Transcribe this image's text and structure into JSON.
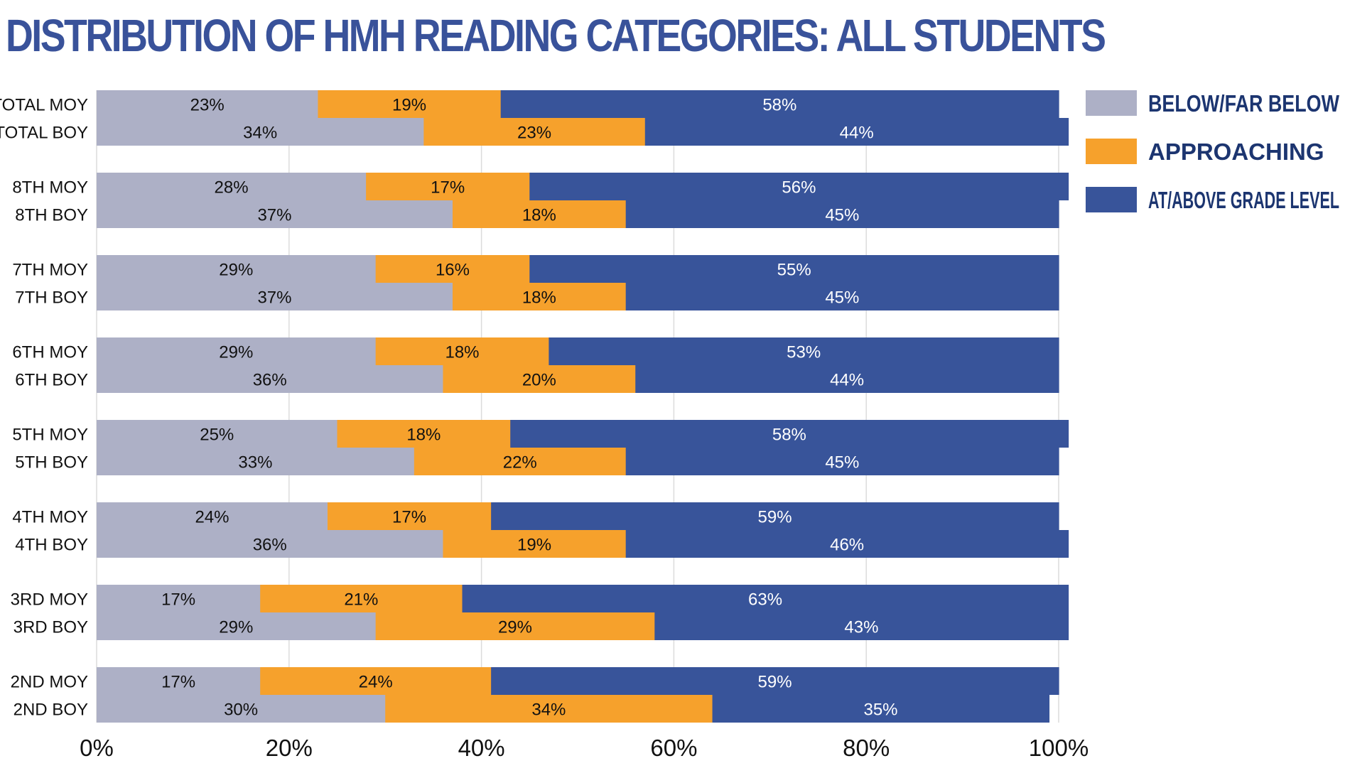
{
  "chart_data": {
    "type": "bar",
    "orientation": "horizontal",
    "stacked": true,
    "title": "DISTRIBUTION OF HMH READING CATEGORIES: ALL STUDENTS",
    "xlabel": "",
    "ylabel": "",
    "xlim": [
      0,
      100
    ],
    "x_ticks": [
      "0%",
      "20%",
      "40%",
      "60%",
      "80%",
      "100%"
    ],
    "grid": true,
    "legend_position": "right",
    "groups": [
      {
        "categories": [
          "TOTAL MOY",
          "TOTAL BOY"
        ]
      },
      {
        "categories": [
          "8TH MOY",
          "8TH BOY"
        ]
      },
      {
        "categories": [
          "7TH MOY",
          "7TH BOY"
        ]
      },
      {
        "categories": [
          "6TH MOY",
          "6TH BOY"
        ]
      },
      {
        "categories": [
          "5TH MOY",
          "5TH BOY"
        ]
      },
      {
        "categories": [
          "4TH MOY",
          "4TH BOY"
        ]
      },
      {
        "categories": [
          "3RD MOY",
          "3RD BOY"
        ]
      },
      {
        "categories": [
          "2ND MOY",
          "2ND BOY"
        ]
      }
    ],
    "categories": [
      "TOTAL MOY",
      "TOTAL BOY",
      "8TH MOY",
      "8TH BOY",
      "7TH MOY",
      "7TH BOY",
      "6TH MOY",
      "6TH BOY",
      "5TH MOY",
      "5TH BOY",
      "4TH MOY",
      "4TH BOY",
      "3RD MOY",
      "3RD BOY",
      "2ND MOY",
      "2ND BOY"
    ],
    "series": [
      {
        "name": "BELOW/FAR BELOW",
        "color": "#adb0c6",
        "label_color": "#111111",
        "values": [
          23,
          34,
          28,
          37,
          29,
          37,
          29,
          36,
          25,
          33,
          24,
          36,
          17,
          29,
          17,
          30
        ]
      },
      {
        "name": "APPROACHING",
        "color": "#f6a12c",
        "label_color": "#111111",
        "values": [
          19,
          23,
          17,
          18,
          16,
          18,
          18,
          20,
          18,
          22,
          17,
          19,
          21,
          29,
          24,
          34
        ]
      },
      {
        "name": "AT/ABOVE GRADE LEVEL",
        "color": "#38549a",
        "label_color": "#ffffff",
        "values": [
          58,
          44,
          56,
          45,
          55,
          45,
          53,
          44,
          58,
          45,
          59,
          46,
          63,
          43,
          59,
          35
        ]
      }
    ],
    "value_labels": [
      [
        "23%",
        "34%",
        "28%",
        "37%",
        "29%",
        "37%",
        "29%",
        "36%",
        "25%",
        "33%",
        "24%",
        "36%",
        "17%",
        "29%",
        "17%",
        "30%"
      ],
      [
        "19%",
        "23%",
        "17%",
        "18%",
        "16%",
        "18%",
        "18%",
        "20%",
        "18%",
        "22%",
        "17%",
        "19%",
        "21%",
        "29%",
        "24%",
        "34%"
      ],
      [
        "58%",
        "44%",
        "56%",
        "45%",
        "55%",
        "45%",
        "53%",
        "44%",
        "58%",
        "45%",
        "59%",
        "46%",
        "63%",
        "43%",
        "59%",
        "35%"
      ]
    ]
  }
}
